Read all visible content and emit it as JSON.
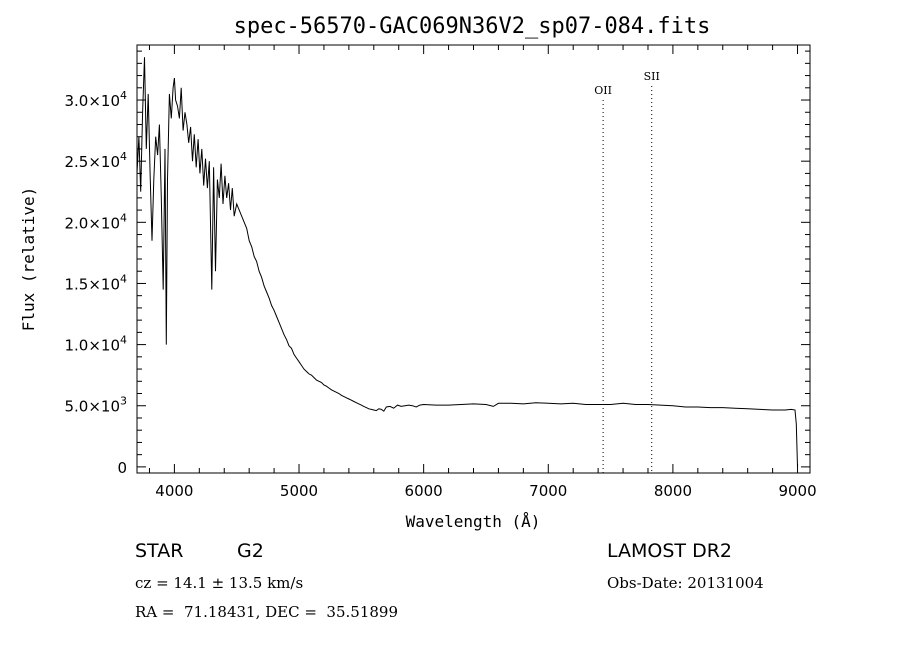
{
  "chart_data": {
    "type": "line",
    "title": "spec-56570-GAC069N36V2_sp07-084.fits",
    "xlabel": "Wavelength (Å)",
    "ylabel": "Flux (relative)",
    "xlim": [
      3700,
      9100
    ],
    "ylim": [
      -500,
      34500
    ],
    "x_ticks": [
      4000,
      5000,
      6000,
      7000,
      8000,
      9000
    ],
    "x_tick_labels": [
      "4000",
      "5000",
      "6000",
      "7000",
      "8000",
      "9000"
    ],
    "y_ticks": [
      0,
      5000,
      10000,
      15000,
      20000,
      25000,
      30000
    ],
    "y_tick_labels": [
      {
        "mantissa": "0",
        "exp": ""
      },
      {
        "mantissa": "5.0×10",
        "exp": "3"
      },
      {
        "mantissa": "1.0×10",
        "exp": "4"
      },
      {
        "mantissa": "1.5×10",
        "exp": "4"
      },
      {
        "mantissa": "2.0×10",
        "exp": "4"
      },
      {
        "mantissa": "2.5×10",
        "exp": "4"
      },
      {
        "mantissa": "3.0×10",
        "exp": "4"
      }
    ],
    "grid": false,
    "line_markers": [
      {
        "label": "OII",
        "x": 7440
      },
      {
        "label": "SII",
        "x": 7830
      }
    ],
    "series": [
      {
        "x": [
          3700,
          3715,
          3730,
          3745,
          3760,
          3775,
          3790,
          3805,
          3820,
          3835,
          3850,
          3865,
          3880,
          3895,
          3910,
          3925,
          3935,
          3945,
          3960,
          3975,
          3990,
          4000,
          4010,
          4025,
          4040,
          4055,
          4070,
          4085,
          4100,
          4115,
          4130,
          4145,
          4160,
          4175,
          4190,
          4205,
          4220,
          4235,
          4250,
          4265,
          4280,
          4300,
          4315,
          4330,
          4345,
          4360,
          4375,
          4390,
          4405,
          4420,
          4435,
          4450,
          4465,
          4480,
          4500,
          4520,
          4540,
          4560,
          4580,
          4600,
          4620,
          4640,
          4660,
          4680,
          4700,
          4720,
          4740,
          4760,
          4780,
          4800,
          4820,
          4840,
          4860,
          4880,
          4900,
          4920,
          4940,
          4960,
          4980,
          5000,
          5020,
          5040,
          5060,
          5080,
          5100,
          5120,
          5140,
          5160,
          5180,
          5200,
          5220,
          5240,
          5260,
          5280,
          5300,
          5320,
          5340,
          5360,
          5380,
          5400,
          5420,
          5440,
          5460,
          5480,
          5500,
          5520,
          5540,
          5560,
          5580,
          5600,
          5620,
          5640,
          5660,
          5680,
          5700,
          5730,
          5760,
          5790,
          5820,
          5850,
          5880,
          5910,
          5940,
          5970,
          6000,
          6100,
          6200,
          6300,
          6400,
          6500,
          6560,
          6600,
          6700,
          6800,
          6900,
          7000,
          7100,
          7200,
          7300,
          7400,
          7500,
          7600,
          7700,
          7800,
          7900,
          8000,
          8100,
          8200,
          8300,
          8400,
          8500,
          8600,
          8700,
          8800,
          8900,
          8950,
          8980,
          8990,
          9000
        ],
        "values": [
          24000,
          27000,
          22500,
          29000,
          33500,
          26000,
          30500,
          24000,
          18500,
          23500,
          27000,
          25500,
          28000,
          22000,
          14500,
          26000,
          10000,
          23500,
          30500,
          28500,
          31000,
          31800,
          30000,
          29500,
          28500,
          31000,
          27500,
          29000,
          28000,
          26500,
          27800,
          25000,
          27200,
          24500,
          26800,
          24000,
          26000,
          23000,
          25200,
          22800,
          25000,
          14500,
          24500,
          16000,
          23500,
          22000,
          24800,
          21500,
          23800,
          22000,
          23200,
          21000,
          22800,
          20500,
          21500,
          21000,
          20500,
          20000,
          19500,
          18500,
          18000,
          17200,
          16800,
          16000,
          15500,
          14800,
          14300,
          13800,
          13200,
          12800,
          12300,
          11800,
          11300,
          10800,
          10400,
          9900,
          9700,
          9200,
          8900,
          8600,
          8300,
          8000,
          7800,
          7600,
          7500,
          7300,
          7100,
          7000,
          6900,
          6700,
          6600,
          6450,
          6300,
          6200,
          6100,
          6000,
          5850,
          5750,
          5650,
          5550,
          5450,
          5350,
          5250,
          5150,
          5050,
          4950,
          4850,
          4750,
          4700,
          4650,
          4600,
          4750,
          4700,
          4550,
          4900,
          4950,
          4800,
          5050,
          4950,
          5000,
          5050,
          5000,
          4900,
          5050,
          5100,
          5050,
          5050,
          5100,
          5150,
          5100,
          4950,
          5200,
          5200,
          5150,
          5250,
          5200,
          5150,
          5200,
          5100,
          5100,
          5100,
          5200,
          5100,
          5100,
          5050,
          5000,
          4900,
          4900,
          4850,
          4850,
          4800,
          4750,
          4700,
          4650,
          4650,
          4700,
          4650,
          3500,
          0
        ]
      }
    ]
  },
  "info": {
    "object_class": "STAR",
    "subclass": "G2",
    "cz": "cz = 14.1 ± 13.5 km/s",
    "coords": "RA =  71.18431, DEC =  35.51899",
    "survey": "LAMOST DR2",
    "obs_date": "Obs-Date: 20131004"
  }
}
